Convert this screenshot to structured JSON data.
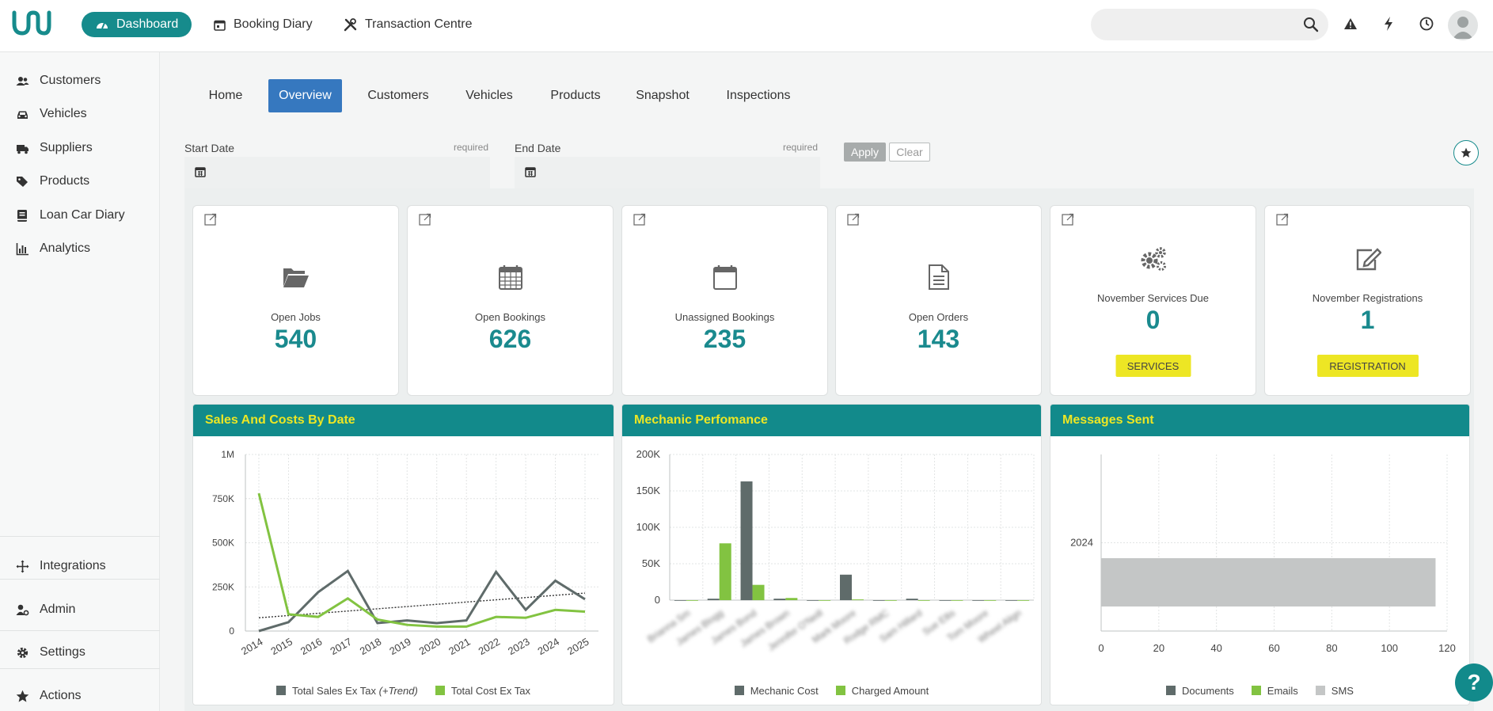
{
  "header": {
    "nav": [
      {
        "label": "Dashboard",
        "icon": "tachometer-icon"
      },
      {
        "label": "Booking Diary",
        "icon": "calendar-icon"
      },
      {
        "label": "Transaction Centre",
        "icon": "tools-icon"
      }
    ],
    "search": {
      "placeholder": "",
      "value": ""
    },
    "icons": [
      "search-icon",
      "warning-icon",
      "bolt-icon",
      "clock-icon",
      "user-avatar"
    ]
  },
  "sidebar": {
    "items": [
      {
        "label": "Customers",
        "icon": "users-icon"
      },
      {
        "label": "Vehicles",
        "icon": "car-icon"
      },
      {
        "label": "Suppliers",
        "icon": "truck-icon"
      },
      {
        "label": "Products",
        "icon": "tags-icon"
      },
      {
        "label": "Loan Car Diary",
        "icon": "book-icon"
      },
      {
        "label": "Analytics",
        "icon": "bar-chart-icon"
      }
    ],
    "bottom_items": [
      {
        "label": "Integrations",
        "icon": "arrows-icon"
      },
      {
        "label": "Admin",
        "icon": "user-gear-icon"
      },
      {
        "label": "Settings",
        "icon": "gear-icon"
      },
      {
        "label": "Actions",
        "icon": "star-icon"
      }
    ]
  },
  "tabs": [
    {
      "label": "Home"
    },
    {
      "label": "Overview",
      "active": true
    },
    {
      "label": "Customers"
    },
    {
      "label": "Vehicles"
    },
    {
      "label": "Products"
    },
    {
      "label": "Snapshot"
    },
    {
      "label": "Inspections"
    }
  ],
  "filters": {
    "start_date": {
      "label": "Start Date",
      "required": "required",
      "value": ""
    },
    "end_date": {
      "label": "End Date",
      "required": "required",
      "value": ""
    },
    "apply": "Apply",
    "clear": "Clear"
  },
  "cards": [
    {
      "label": "Open Jobs",
      "value": "540",
      "icon": "folder-open-icon"
    },
    {
      "label": "Open Bookings",
      "value": "626",
      "icon": "calendar-grid-icon"
    },
    {
      "label": "Unassigned Bookings",
      "value": "235",
      "icon": "calendar-blank-icon"
    },
    {
      "label": "Open Orders",
      "value": "143",
      "icon": "document-icon"
    },
    {
      "label": "November Services Due",
      "value": "0",
      "icon": "gears-icon",
      "button": "SERVICES"
    },
    {
      "label": "November Registrations",
      "value": "1",
      "icon": "edit-icon",
      "button": "REGISTRATION"
    }
  ],
  "colors": {
    "teal": "#128a8b",
    "yellow": "#ede624",
    "blue": "#3678bf",
    "dark_series": "#5f6b6a",
    "green_series": "#82c341",
    "grey_series": "#c4c6c6"
  },
  "panels": [
    {
      "title": "Sales And Costs By Date"
    },
    {
      "title": "Mechanic Perfomance"
    },
    {
      "title": "Messages Sent"
    }
  ],
  "chart_data": [
    {
      "type": "line",
      "title": "Sales And Costs By Date",
      "x": [
        "2014",
        "2015",
        "2016",
        "2017",
        "2018",
        "2019",
        "2020",
        "2021",
        "2022",
        "2023",
        "2024",
        "2025"
      ],
      "y_ticks": [
        "0",
        "250K",
        "500K",
        "750K",
        "1M"
      ],
      "ylim": [
        0,
        1000000
      ],
      "series": [
        {
          "name": "Total Sales Ex Tax",
          "name_suffix": "(+Trend)",
          "values": [
            0,
            50000,
            220000,
            340000,
            45000,
            60000,
            45000,
            60000,
            335000,
            120000,
            285000,
            180000
          ]
        },
        {
          "name": "Total Cost Ex Tax",
          "values": [
            780000,
            95000,
            80000,
            185000,
            65000,
            35000,
            25000,
            25000,
            80000,
            75000,
            120000,
            110000
          ]
        }
      ],
      "trend": {
        "start": 75000,
        "end": 215000
      },
      "legend": "bottom"
    },
    {
      "type": "bar",
      "title": "Mechanic Perfomance",
      "categories": [
        "Brianna Sm",
        "James Blogg",
        "James Bond",
        "James Brown",
        "Jennifer O'Neill",
        "Mark Moore",
        "Rodge RMC",
        "Sam Hillard",
        "Sue Ellis",
        "Tom Moore",
        "Wheel Align"
      ],
      "categories_blurred": true,
      "y_ticks": [
        "0",
        "50K",
        "100K",
        "150K",
        "200K"
      ],
      "ylim": [
        0,
        200000
      ],
      "series": [
        {
          "name": "Mechanic Cost",
          "values": [
            0,
            2000,
            163000,
            2000,
            0,
            35000,
            0,
            2000,
            0,
            0,
            0
          ]
        },
        {
          "name": "Charged Amount",
          "values": [
            0,
            78000,
            21000,
            3000,
            0,
            1000,
            0,
            0,
            0,
            0,
            0
          ]
        }
      ],
      "legend": "bottom"
    },
    {
      "type": "bar",
      "orientation": "horizontal",
      "title": "Messages Sent",
      "categories": [
        "2024"
      ],
      "x_ticks": [
        "0",
        "20",
        "40",
        "60",
        "80",
        "100",
        "120"
      ],
      "xlim": [
        0,
        120
      ],
      "series": [
        {
          "name": "Documents",
          "values": [
            0
          ]
        },
        {
          "name": "Emails",
          "values": [
            0
          ]
        },
        {
          "name": "SMS",
          "values": [
            116
          ]
        }
      ],
      "legend": "bottom"
    }
  ]
}
